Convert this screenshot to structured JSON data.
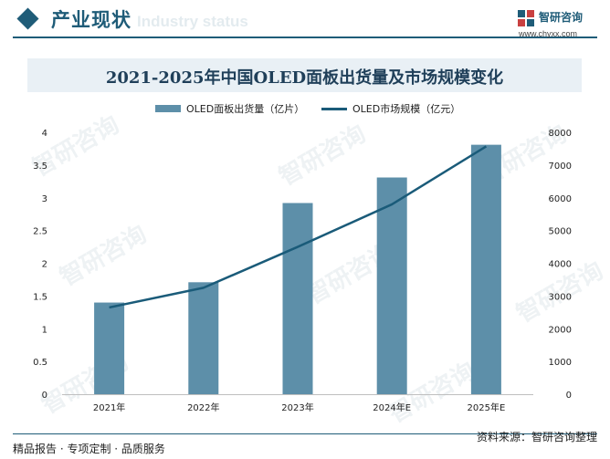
{
  "header": {
    "section_title": "产业现状",
    "ghost_text": "Industry status",
    "brand_name": "智研咨询",
    "brand_url": "www.chyxx.com"
  },
  "footer": {
    "left_text": "精品报告 · 专项定制 · 品质服务",
    "right_text": "资料来源：智研咨询整理"
  },
  "watermark_text": "智研咨询",
  "colors": {
    "primary": "#1f5c78",
    "bar": "#5d8fa9",
    "line": "#1a5b79",
    "title_bg": "#e9f0f5"
  },
  "chart_data": {
    "type": "bar",
    "title": "2021-2025年中国OLED面板出货量及市场规模变化",
    "categories": [
      "2021年",
      "2022年",
      "2023年",
      "2024年E",
      "2025年E"
    ],
    "series": [
      {
        "name": "OLED面板出货量（亿片）",
        "type": "bar",
        "axis": "left",
        "values": [
          1.4,
          1.71,
          2.92,
          3.31,
          3.81
        ]
      },
      {
        "name": "OLED市场规模（亿元）",
        "type": "line",
        "axis": "right",
        "values": [
          2650,
          3250,
          4500,
          5800,
          7570
        ]
      }
    ],
    "y_left": {
      "min": 0,
      "max": 4,
      "step": 0.5,
      "ticks": [
        "0",
        "0.5",
        "1",
        "1.5",
        "2",
        "2.5",
        "3",
        "3.5",
        "4"
      ]
    },
    "y_right": {
      "min": 0,
      "max": 8000,
      "step": 1000,
      "ticks": [
        "0",
        "1000",
        "2000",
        "3000",
        "4000",
        "5000",
        "6000",
        "7000",
        "8000"
      ]
    },
    "grid": false,
    "legend_position": "top"
  }
}
